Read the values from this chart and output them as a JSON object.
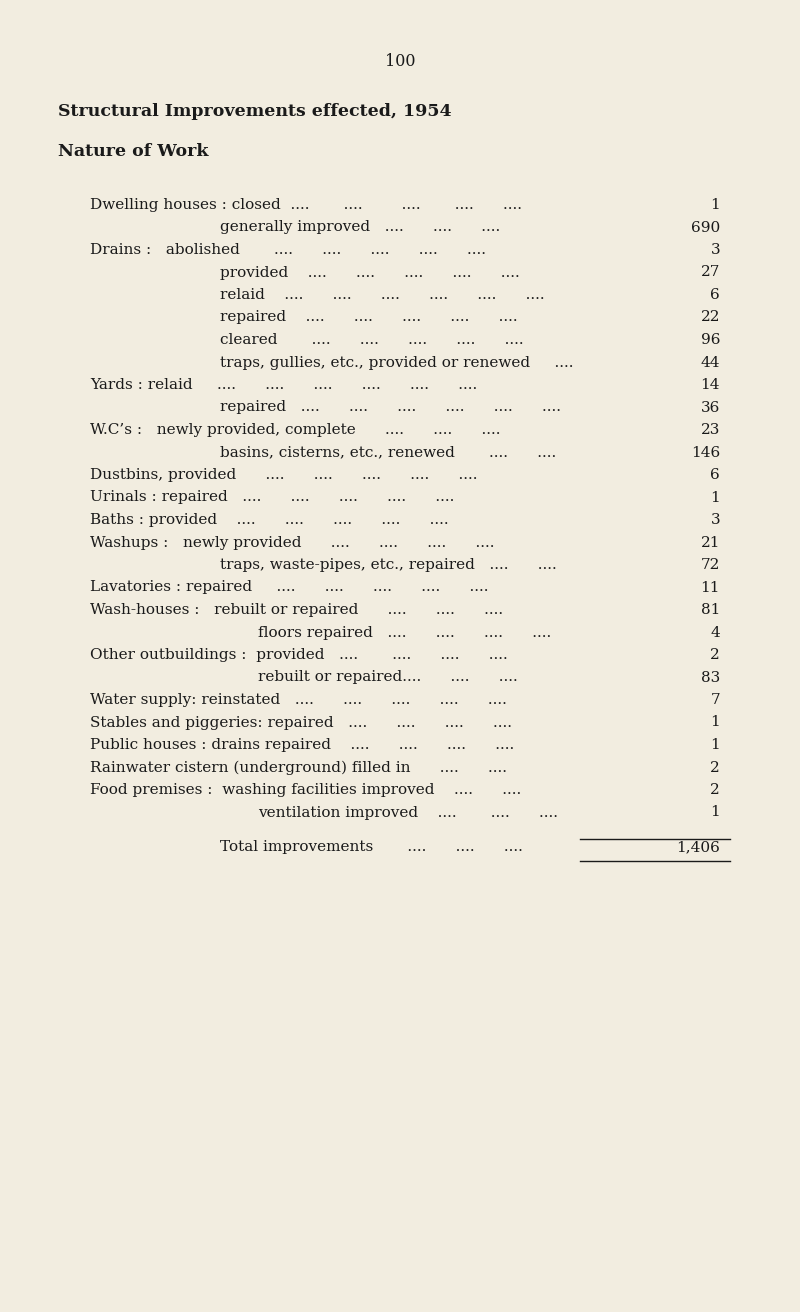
{
  "page_number": "100",
  "title": "Structural Improvements effected, 1954",
  "subtitle": "Nature of Work",
  "background_color": "#f2ede0",
  "text_color": "#1a1a1a",
  "rows": [
    {
      "indent": 0,
      "label": "Dwelling houses : closed  ....       ....        ....       ....      ....",
      "value": "1"
    },
    {
      "indent": 1,
      "label": "generally improved   ....      ....      ....",
      "value": "690"
    },
    {
      "indent": 0,
      "label": "Drains :   abolished       ....      ....      ....      ....      ....",
      "value": "3"
    },
    {
      "indent": 1,
      "label": "provided    ....      ....      ....      ....      ....",
      "value": "27"
    },
    {
      "indent": 1,
      "label": "relaid    ....      ....      ....      ....      ....      ....",
      "value": "6"
    },
    {
      "indent": 1,
      "label": "repaired    ....      ....      ....      ....      ....",
      "value": "22"
    },
    {
      "indent": 1,
      "label": "cleared       ....      ....      ....      ....      ....",
      "value": "96"
    },
    {
      "indent": 1,
      "label": "traps, gullies, etc., provided or renewed     ....",
      "value": "44"
    },
    {
      "indent": 0,
      "label": "Yards : relaid     ....      ....      ....      ....      ....      ....",
      "value": "14"
    },
    {
      "indent": 1,
      "label": "repaired   ....      ....      ....      ....      ....      ....",
      "value": "36"
    },
    {
      "indent": 0,
      "label": "W.C’s :   newly provided, complete      ....      ....      ....",
      "value": "23"
    },
    {
      "indent": 1,
      "label": "basins, cisterns, etc., renewed       ....      ....",
      "value": "146"
    },
    {
      "indent": 0,
      "label": "Dustbins, provided      ....      ....      ....      ....      ....",
      "value": "6"
    },
    {
      "indent": 0,
      "label": "Urinals : repaired   ....      ....      ....      ....      ....",
      "value": "1"
    },
    {
      "indent": 0,
      "label": "Baths : provided    ....      ....      ....      ....      ....",
      "value": "3"
    },
    {
      "indent": 0,
      "label": "Washups :   newly provided      ....      ....      ....      ....",
      "value": "21"
    },
    {
      "indent": 1,
      "label": "traps, waste-pipes, etc., repaired   ....      ....",
      "value": "72"
    },
    {
      "indent": 0,
      "label": "Lavatories : repaired     ....      ....      ....      ....      ....",
      "value": "11"
    },
    {
      "indent": 0,
      "label": "Wash-houses :   rebuilt or repaired      ....      ....      ....",
      "value": "81"
    },
    {
      "indent": 2,
      "label": "floors repaired   ....      ....      ....      ....",
      "value": "4"
    },
    {
      "indent": 0,
      "label": "Other outbuildings :  provided   ....       ....      ....      ....",
      "value": "2"
    },
    {
      "indent": 2,
      "label": "rebuilt or repaired....      ....      ....",
      "value": "83"
    },
    {
      "indent": 0,
      "label": "Water supply: reinstated   ....      ....      ....      ....      ....",
      "value": "7"
    },
    {
      "indent": 0,
      "label": "Stables and piggeries: repaired   ....      ....      ....      ....",
      "value": "1"
    },
    {
      "indent": 0,
      "label": "Public houses : drains repaired    ....      ....      ....      ....",
      "value": "1"
    },
    {
      "indent": 0,
      "label": "Rainwater cistern (underground) filled in      ....      ....",
      "value": "2"
    },
    {
      "indent": 0,
      "label": "Food premises :  washing facilities improved    ....      ....",
      "value": "2"
    },
    {
      "indent": 2,
      "label": "ventilation improved    ....       ....      ....",
      "value": "1"
    }
  ],
  "total_label": "Total improvements       ....      ....      .... ",
  "total_value": "1,406",
  "title_fontsize": 12.5,
  "subtitle_fontsize": 12.5,
  "body_fontsize": 11.0,
  "page_num_fontsize": 11.5
}
